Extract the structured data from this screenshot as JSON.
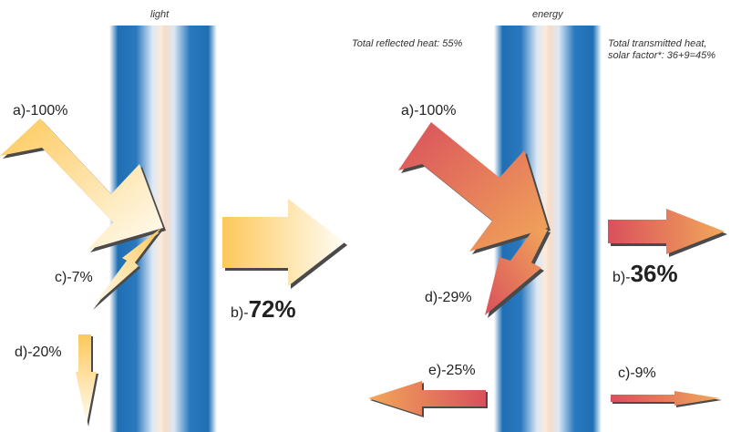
{
  "colors": {
    "glass_dark": "#1f6fb3",
    "glass_light": "#ffffff",
    "glass_center": "#f6dcc8",
    "light_arrow_start": "#fdc85a",
    "light_arrow_end": "#fffdf5",
    "energy_arrow_start": "#d9505c",
    "energy_arrow_end": "#f2a85a"
  },
  "light": {
    "caption": "light",
    "incident": "a)-100%",
    "transmitted_prefix": "b)-",
    "transmitted_value": "72%",
    "reflected_outer": "c)-7%",
    "reflected_inner": "d)-20%"
  },
  "energy": {
    "caption": "energy",
    "reflected_total": "Total reflected heat: 55%",
    "transmitted_total_line1": "Total transmitted heat,",
    "transmitted_total_line2": "solar factor*: 36+9=45%",
    "incident": "a)-100%",
    "transmitted_prefix": "b)-",
    "transmitted_value": "36%",
    "absorbed_in": "c)-9%",
    "reflected": "d)-29%",
    "absorbed_out": "e)-25%"
  }
}
